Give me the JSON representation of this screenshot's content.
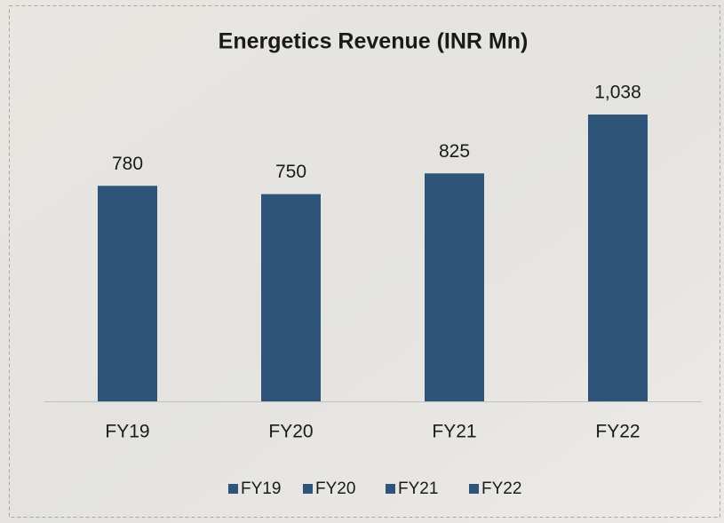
{
  "chart_data": {
    "type": "bar",
    "title": "Energetics Revenue (INR Mn)",
    "categories": [
      "FY19",
      "FY20",
      "FY21",
      "FY22"
    ],
    "series": [
      {
        "name": "FY19",
        "color": "#2f5479",
        "values": [
          780,
          null,
          null,
          null
        ]
      },
      {
        "name": "FY20",
        "color": "#2f5479",
        "values": [
          null,
          750,
          null,
          null
        ]
      },
      {
        "name": "FY21",
        "color": "#2f5479",
        "values": [
          null,
          null,
          825,
          null
        ]
      },
      {
        "name": "FY22",
        "color": "#2f5479",
        "values": [
          null,
          null,
          null,
          1038
        ],
        "value_labels": [
          null,
          null,
          null,
          "1,038"
        ]
      }
    ],
    "legend": "bottom"
  }
}
